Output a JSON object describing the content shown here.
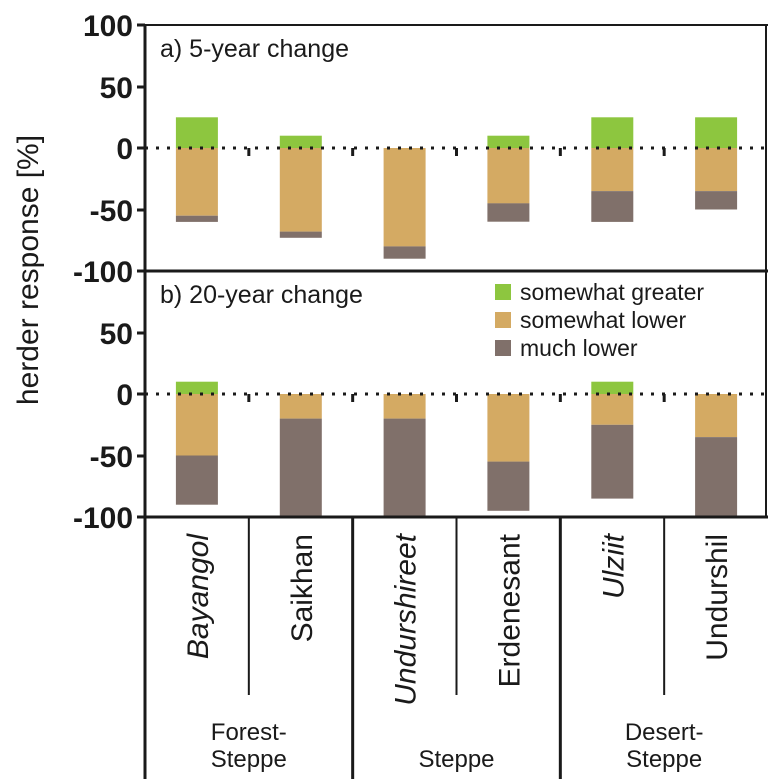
{
  "chart_data": [
    {
      "type": "bar",
      "stacked": true,
      "title": "a) 5-year change",
      "ylabel": "herder response [%]",
      "ylim": [
        -100,
        100
      ],
      "yticks": [
        "100",
        "50",
        "0",
        "-50",
        "-100"
      ],
      "categories": [
        "Bayangol",
        "Saikhan",
        "Undurshireet",
        "Erdenesant",
        "Ulziit",
        "Undurshil"
      ],
      "series": [
        {
          "name": "somewhat greater",
          "color": "#8dc63f",
          "values": [
            25,
            10,
            0,
            10,
            25,
            25
          ]
        },
        {
          "name": "somewhat lower",
          "color": "#d4aa63",
          "values": [
            -55,
            -68,
            -80,
            -45,
            -35,
            -35
          ]
        },
        {
          "name": "much lower",
          "color": "#80706a",
          "values": [
            -5,
            -5,
            -10,
            -15,
            -25,
            -15
          ]
        }
      ]
    },
    {
      "type": "bar",
      "stacked": true,
      "title": "b) 20-year change",
      "ylabel": "herder response [%]",
      "ylim": [
        -100,
        100
      ],
      "yticks": [
        "-100",
        "-50",
        "0",
        "50"
      ],
      "categories": [
        "Bayangol",
        "Saikhan",
        "Undurshireet",
        "Erdenesant",
        "Ulziit",
        "Undurshil"
      ],
      "series": [
        {
          "name": "somewhat greater",
          "color": "#8dc63f",
          "values": [
            10,
            0,
            0,
            0,
            10,
            0
          ]
        },
        {
          "name": "somewhat lower",
          "color": "#d4aa63",
          "values": [
            -50,
            -20,
            -20,
            -55,
            -25,
            -35
          ]
        },
        {
          "name": "much lower",
          "color": "#80706a",
          "values": [
            -40,
            -80,
            -80,
            -40,
            -60,
            -65
          ]
        }
      ]
    }
  ],
  "legend": [
    {
      "label": "somewhat greater",
      "color": "#8dc63f"
    },
    {
      "label": "somewhat lower",
      "color": "#d4aa63"
    },
    {
      "label": "much lower",
      "color": "#80706a"
    }
  ],
  "category_labels": [
    {
      "text": "Bayangol",
      "italic": true
    },
    {
      "text": "Saikhan",
      "italic": false
    },
    {
      "text": "Undurshireet",
      "italic": true
    },
    {
      "text": "Erdenesant",
      "italic": false
    },
    {
      "text": "Ulziit",
      "italic": true
    },
    {
      "text": "Undurshil",
      "italic": false
    }
  ],
  "regions": [
    {
      "lines": [
        "Forest-",
        "Steppe"
      ]
    },
    {
      "lines": [
        "Steppe"
      ]
    },
    {
      "lines": [
        "Desert-",
        "Steppe"
      ]
    }
  ],
  "ylabel": "herder response [%]"
}
